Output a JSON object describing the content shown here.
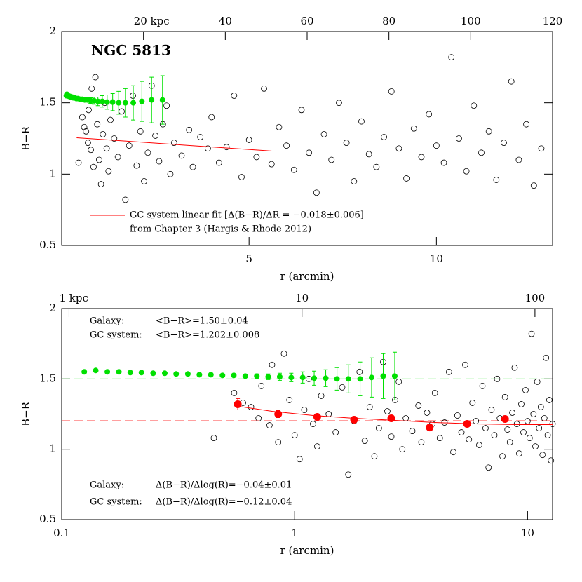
{
  "chart_data": [
    {
      "type": "scatter",
      "title": "NGC 5813",
      "xlabel": "r (arcmin)",
      "ylabel": "B−R",
      "xscale": "linear",
      "xlim": [
        0,
        13.1
      ],
      "xticks": [
        5,
        10
      ],
      "x2scale": "linear",
      "x2lim": [
        0,
        120
      ],
      "x2ticks": [
        {
          "value": 20,
          "label": "20  kpc"
        },
        40,
        60,
        80,
        100,
        120
      ],
      "ylim": [
        0.5,
        2
      ],
      "yticks": [
        0.5,
        1,
        1.5,
        2
      ],
      "series": [
        {
          "marker": "open-circle",
          "color": "#000000",
          "x": [
            0.45,
            0.55,
            0.6,
            0.65,
            0.7,
            0.72,
            0.78,
            0.8,
            0.85,
            0.9,
            0.95,
            1.0,
            1.05,
            1.1,
            1.15,
            1.2,
            1.25,
            1.3,
            1.4,
            1.5,
            1.6,
            1.7,
            1.8,
            1.9,
            2.0,
            2.1,
            2.2,
            2.3,
            2.4,
            2.5,
            2.6,
            2.7,
            2.8,
            2.9,
            3.0,
            3.2,
            3.4,
            3.5,
            3.7,
            3.9,
            4.0,
            4.2,
            4.4,
            4.6,
            4.8,
            5.0,
            5.2,
            5.4,
            5.6,
            5.8,
            6.0,
            6.2,
            6.4,
            6.6,
            6.8,
            7.0,
            7.2,
            7.4,
            7.6,
            7.8,
            8.0,
            8.2,
            8.4,
            8.6,
            8.8,
            9.0,
            9.2,
            9.4,
            9.6,
            9.8,
            10.0,
            10.2,
            10.4,
            10.6,
            10.8,
            11.0,
            11.2,
            11.4,
            11.6,
            11.8,
            12.0,
            12.2,
            12.4,
            12.6,
            12.8
          ],
          "values": [
            1.08,
            1.4,
            1.33,
            1.3,
            1.22,
            1.45,
            1.17,
            1.6,
            1.05,
            1.68,
            1.35,
            1.1,
            0.93,
            1.28,
            1.5,
            1.18,
            1.02,
            1.38,
            1.25,
            1.12,
            1.44,
            0.82,
            1.2,
            1.55,
            1.06,
            1.3,
            0.95,
            1.15,
            1.62,
            1.27,
            1.09,
            1.35,
            1.48,
            1.0,
            1.22,
            1.13,
            1.31,
            1.05,
            1.26,
            1.18,
            1.4,
            1.08,
            1.19,
            1.55,
            0.98,
            1.24,
            1.12,
            1.6,
            1.07,
            1.33,
            1.2,
            1.03,
            1.45,
            1.15,
            0.87,
            1.28,
            1.1,
            1.5,
            1.22,
            0.95,
            1.37,
            1.14,
            1.05,
            1.26,
            1.58,
            1.18,
            0.97,
            1.32,
            1.12,
            1.42,
            1.2,
            1.08,
            1.82,
            1.25,
            1.02,
            1.48,
            1.15,
            1.3,
            0.96,
            1.22,
            1.65,
            1.1,
            1.35,
            0.92,
            1.18
          ]
        },
        {
          "marker": "filled-circle",
          "color": "#00e000",
          "x": [
            0.125,
            0.14,
            0.157,
            0.176,
            0.197,
            0.22,
            0.247,
            0.277,
            0.31,
            0.348,
            0.39,
            0.437,
            0.49,
            0.548,
            0.614,
            0.688,
            0.77,
            0.863,
            0.967,
            1.083,
            1.213,
            1.36,
            1.52,
            1.7,
            1.91,
            2.14,
            2.4,
            2.69
          ],
          "values": [
            1.55,
            1.56,
            1.55,
            1.55,
            1.545,
            1.545,
            1.54,
            1.54,
            1.535,
            1.535,
            1.53,
            1.53,
            1.525,
            1.525,
            1.52,
            1.52,
            1.515,
            1.515,
            1.51,
            1.51,
            1.505,
            1.505,
            1.5,
            1.5,
            1.5,
            1.51,
            1.52,
            1.52
          ],
          "errors": [
            0.005,
            0.005,
            0.005,
            0.005,
            0.005,
            0.005,
            0.005,
            0.005,
            0.005,
            0.005,
            0.005,
            0.005,
            0.005,
            0.005,
            0.01,
            0.015,
            0.02,
            0.025,
            0.03,
            0.04,
            0.05,
            0.06,
            0.08,
            0.1,
            0.12,
            0.14,
            0.16,
            0.17
          ]
        },
        {
          "marker": "line",
          "color": "#ff0000",
          "x": [
            0.4,
            5.6
          ],
          "values": [
            1.255,
            1.162
          ]
        }
      ],
      "annotations": [
        "GC system linear fit [Δ(B−R)/ΔR = −0.018±0.006]",
        "from Chapter 3 (Hargis & Rhode 2012)"
      ]
    },
    {
      "type": "scatter",
      "xlabel": "r (arcmin)",
      "ylabel": "B−R",
      "xscale": "log",
      "xlim": [
        0.1,
        12.8
      ],
      "xticks": [
        0.1,
        1,
        10
      ],
      "x2scale": "log",
      "x2lim": [
        0.93,
        119
      ],
      "x2ticks": [
        {
          "value": 1,
          "label": "1 kpc"
        },
        10,
        100
      ],
      "ylim": [
        0.5,
        2
      ],
      "yticks": [
        0.5,
        1,
        1.5,
        2
      ],
      "hlines": [
        {
          "value": 1.5,
          "color": "#00e000"
        },
        {
          "value": 1.202,
          "color": "#ff0000"
        }
      ],
      "series": [
        {
          "marker": "open-circle",
          "color": "#000000",
          "x": [
            0.45,
            0.55,
            0.6,
            0.65,
            0.7,
            0.72,
            0.78,
            0.8,
            0.85,
            0.9,
            0.95,
            1.0,
            1.05,
            1.1,
            1.15,
            1.2,
            1.25,
            1.3,
            1.4,
            1.5,
            1.6,
            1.7,
            1.8,
            1.9,
            2.0,
            2.1,
            2.2,
            2.3,
            2.4,
            2.5,
            2.6,
            2.7,
            2.8,
            2.9,
            3.0,
            3.2,
            3.4,
            3.5,
            3.7,
            3.9,
            4.0,
            4.2,
            4.4,
            4.6,
            4.8,
            5.0,
            5.2,
            5.4,
            5.6,
            5.8,
            6.0,
            6.2,
            6.4,
            6.6,
            6.8,
            7.0,
            7.2,
            7.4,
            7.6,
            7.8,
            8.0,
            8.2,
            8.4,
            8.6,
            8.8,
            9.0,
            9.2,
            9.4,
            9.6,
            9.8,
            10.0,
            10.2,
            10.4,
            10.6,
            10.8,
            11.0,
            11.2,
            11.4,
            11.6,
            11.8,
            12.0,
            12.2,
            12.4,
            12.6,
            12.8
          ],
          "values": [
            1.08,
            1.4,
            1.33,
            1.3,
            1.22,
            1.45,
            1.17,
            1.6,
            1.05,
            1.68,
            1.35,
            1.1,
            0.93,
            1.28,
            1.5,
            1.18,
            1.02,
            1.38,
            1.25,
            1.12,
            1.44,
            0.82,
            1.2,
            1.55,
            1.06,
            1.3,
            0.95,
            1.15,
            1.62,
            1.27,
            1.09,
            1.35,
            1.48,
            1.0,
            1.22,
            1.13,
            1.31,
            1.05,
            1.26,
            1.18,
            1.4,
            1.08,
            1.19,
            1.55,
            0.98,
            1.24,
            1.12,
            1.6,
            1.07,
            1.33,
            1.2,
            1.03,
            1.45,
            1.15,
            0.87,
            1.28,
            1.1,
            1.5,
            1.22,
            0.95,
            1.37,
            1.14,
            1.05,
            1.26,
            1.58,
            1.18,
            0.97,
            1.32,
            1.12,
            1.42,
            1.2,
            1.08,
            1.82,
            1.25,
            1.02,
            1.48,
            1.15,
            1.3,
            0.96,
            1.22,
            1.65,
            1.1,
            1.35,
            0.92,
            1.18
          ]
        },
        {
          "marker": "filled-circle",
          "color": "#00e000",
          "x": [
            0.125,
            0.14,
            0.157,
            0.176,
            0.197,
            0.22,
            0.247,
            0.277,
            0.31,
            0.348,
            0.39,
            0.437,
            0.49,
            0.548,
            0.614,
            0.688,
            0.77,
            0.863,
            0.967,
            1.083,
            1.213,
            1.36,
            1.52,
            1.7,
            1.91,
            2.14,
            2.4,
            2.69
          ],
          "values": [
            1.55,
            1.56,
            1.55,
            1.55,
            1.545,
            1.545,
            1.54,
            1.54,
            1.535,
            1.535,
            1.53,
            1.53,
            1.525,
            1.525,
            1.52,
            1.52,
            1.515,
            1.515,
            1.51,
            1.51,
            1.505,
            1.505,
            1.5,
            1.5,
            1.5,
            1.51,
            1.52,
            1.52
          ],
          "errors": [
            0.005,
            0.005,
            0.005,
            0.005,
            0.005,
            0.005,
            0.005,
            0.005,
            0.005,
            0.005,
            0.005,
            0.005,
            0.005,
            0.005,
            0.01,
            0.015,
            0.02,
            0.025,
            0.03,
            0.04,
            0.05,
            0.06,
            0.08,
            0.1,
            0.12,
            0.14,
            0.16,
            0.17
          ]
        },
        {
          "marker": "line",
          "color": "#ff0000",
          "x": [
            0.55,
            0.8,
            1.2,
            1.8,
            2.7,
            4,
            6,
            9,
            12.8
          ],
          "values": [
            1.31,
            1.27,
            1.24,
            1.22,
            1.205,
            1.19,
            1.18,
            1.175,
            1.175
          ]
        },
        {
          "marker": "big-circle",
          "color": "#ff0000",
          "x": [
            0.57,
            0.85,
            1.25,
            1.8,
            2.6,
            3.8,
            5.5,
            8.0
          ],
          "values": [
            1.32,
            1.25,
            1.23,
            1.21,
            1.22,
            1.155,
            1.18,
            1.215
          ],
          "errors": [
            0.04,
            0.025,
            0.02,
            0.02,
            0.015,
            0.015,
            0.015,
            0.015
          ]
        }
      ],
      "annotations": [
        "Galaxy:",
        "<B−R>=1.50±0.04",
        "GC system:",
        "<B−R>=1.202±0.008",
        "Galaxy:",
        "Δ(B−R)/Δlog(R)=−0.04±0.01",
        "GC system:",
        "Δ(B−R)/Δlog(R)=−0.12±0.04"
      ]
    }
  ]
}
